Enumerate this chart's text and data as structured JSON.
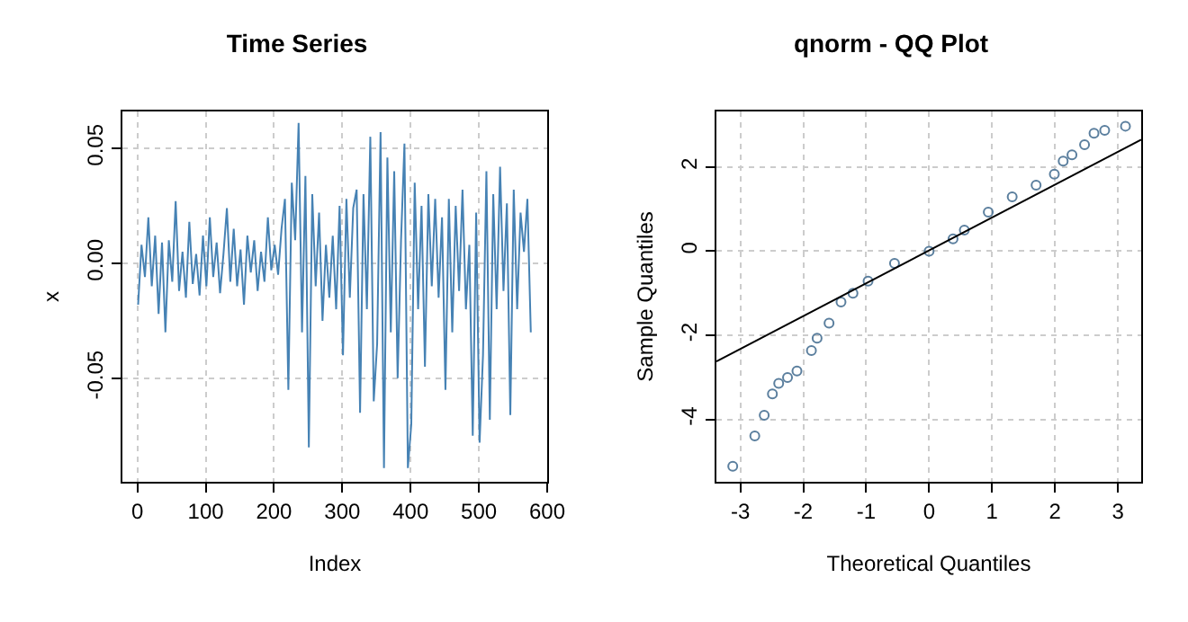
{
  "chart_data": [
    {
      "type": "line",
      "title": "Time Series",
      "xlabel": "Index",
      "ylabel": "x",
      "xlim": [
        -22,
        600
      ],
      "xticks": [
        0,
        100,
        200,
        300,
        400,
        500,
        600
      ],
      "ylim": [
        -0.095,
        0.066
      ],
      "yticks": [
        {
          "value": -0.05,
          "label": "-0.05"
        },
        {
          "value": 0,
          "label": "0.00"
        },
        {
          "value": 0.05,
          "label": "0.05"
        }
      ],
      "grid": true,
      "x": [
        1,
        6,
        11,
        16,
        21,
        26,
        31,
        36,
        41,
        46,
        51,
        56,
        61,
        66,
        71,
        76,
        81,
        86,
        91,
        96,
        101,
        106,
        111,
        116,
        121,
        126,
        131,
        136,
        141,
        146,
        151,
        156,
        161,
        166,
        171,
        176,
        181,
        186,
        191,
        196,
        201,
        206,
        211,
        216,
        221,
        226,
        231,
        236,
        241,
        246,
        251,
        256,
        261,
        266,
        271,
        276,
        281,
        286,
        291,
        296,
        301,
        306,
        311,
        316,
        321,
        326,
        331,
        336,
        341,
        346,
        351,
        356,
        361,
        366,
        371,
        376,
        381,
        386,
        391,
        396,
        401,
        406,
        411,
        416,
        421,
        426,
        431,
        436,
        441,
        446,
        451,
        456,
        461,
        466,
        471,
        476,
        481,
        486,
        491,
        496,
        501,
        506,
        511,
        516,
        521,
        526,
        531,
        536,
        541,
        546,
        551,
        556,
        561,
        566,
        571,
        576
      ],
      "series": [
        {
          "color": "#4682b4",
          "values": [
            -0.018,
            0.008,
            -0.006,
            0.02,
            -0.01,
            0.012,
            -0.022,
            0.009,
            -0.03,
            0.01,
            -0.008,
            0.027,
            -0.012,
            0.005,
            -0.015,
            0.018,
            -0.009,
            0.004,
            -0.014,
            0.012,
            -0.01,
            0.02,
            -0.006,
            0.009,
            -0.013,
            0.004,
            0.024,
            -0.008,
            0.015,
            -0.01,
            0.006,
            -0.018,
            0.012,
            -0.004,
            0.01,
            -0.012,
            0.005,
            -0.008,
            0.02,
            -0.003,
            0.008,
            -0.005,
            0.015,
            0.028,
            -0.055,
            0.035,
            0.01,
            0.061,
            -0.03,
            0.038,
            -0.08,
            0.03,
            -0.01,
            0.022,
            -0.025,
            0.008,
            -0.015,
            0.012,
            -0.02,
            0.025,
            -0.04,
            0.028,
            -0.015,
            0.024,
            0.032,
            -0.065,
            0.03,
            -0.02,
            0.055,
            -0.06,
            -0.035,
            0.057,
            -0.089,
            0.046,
            -0.03,
            0.04,
            -0.05,
            0.01,
            0.052,
            -0.089,
            -0.07,
            0.035,
            -0.02,
            0.025,
            -0.045,
            0.03,
            -0.01,
            0.028,
            -0.015,
            0.02,
            -0.055,
            0.028,
            -0.03,
            0.025,
            -0.012,
            0.032,
            -0.02,
            0.008,
            -0.075,
            0.022,
            -0.078,
            -0.04,
            0.04,
            -0.068,
            0.03,
            -0.02,
            0.042,
            -0.012,
            0.026,
            -0.066,
            0.032,
            -0.02,
            0.022,
            0.005,
            0.028,
            -0.03
          ]
        }
      ]
    },
    {
      "type": "scatter",
      "title": "qnorm - QQ Plot",
      "xlabel": "Theoretical Quantiles",
      "ylabel": "Sample Quantiles",
      "xlim": [
        -3.38,
        3.37
      ],
      "xticks": [
        -3,
        -2,
        -1,
        0,
        1,
        2,
        3
      ],
      "ylim": [
        -5.48,
        3.32
      ],
      "yticks": [
        -4,
        -2,
        0,
        2
      ],
      "grid": true,
      "series": [
        {
          "marker": "circle",
          "color": "#5b7f9e",
          "x": [
            -3.12,
            -2.77,
            -2.62,
            -2.49,
            -2.39,
            -2.25,
            -2.1,
            -1.87,
            -1.78,
            -1.59,
            -1.4,
            -1.21,
            -0.97,
            -0.55,
            0,
            0.38,
            0.56,
            0.94,
            1.32,
            1.7,
            1.99,
            2.13,
            2.27,
            2.47,
            2.62,
            2.79,
            3.12
          ],
          "values": [
            -5.11,
            -4.39,
            -3.9,
            -3.39,
            -3.14,
            -3.0,
            -2.85,
            -2.36,
            -2.07,
            -1.71,
            -1.21,
            -1.0,
            -0.71,
            -0.29,
            0,
            0.29,
            0.5,
            0.93,
            1.29,
            1.57,
            1.83,
            2.14,
            2.29,
            2.53,
            2.8,
            2.87,
            2.97
          ]
        },
        {
          "type": "line",
          "color": "#000000",
          "x": [
            -3.38,
            3.37
          ],
          "values": [
            -2.62,
            2.65
          ]
        }
      ]
    }
  ]
}
